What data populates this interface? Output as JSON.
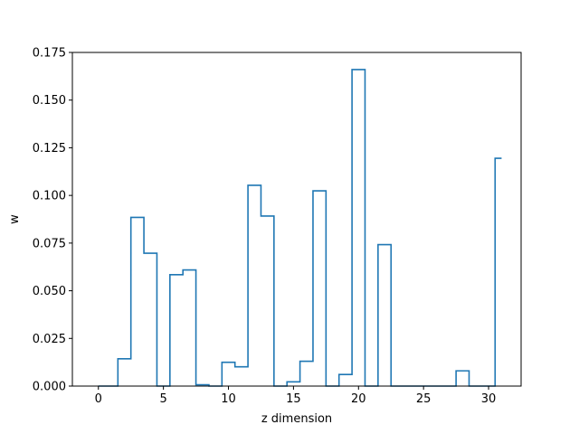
{
  "chart_data": {
    "type": "line",
    "drawstyle": "steps-mid",
    "title": "",
    "xlabel": "z dimension",
    "ylabel": "w",
    "xlim": [
      -2,
      32.5
    ],
    "ylim": [
      0,
      0.175
    ],
    "xticks": [
      0,
      5,
      10,
      15,
      20,
      25,
      30
    ],
    "xtick_labels": [
      "0",
      "5",
      "10",
      "15",
      "20",
      "25",
      "30"
    ],
    "yticks": [
      0,
      0.025,
      0.05,
      0.075,
      0.1,
      0.125,
      0.15,
      0.175
    ],
    "ytick_labels": [
      "0.000",
      "0.025",
      "0.050",
      "0.075",
      "0.100",
      "0.125",
      "0.150",
      "0.175"
    ],
    "grid": false,
    "line_color": "#1f77b4",
    "x": [
      0,
      1,
      2,
      3,
      4,
      5,
      6,
      7,
      8,
      9,
      10,
      11,
      12,
      13,
      14,
      15,
      16,
      17,
      18,
      19,
      20,
      21,
      22,
      23,
      24,
      25,
      26,
      27,
      28,
      29,
      30,
      31
    ],
    "y": [
      0,
      0,
      0.0143,
      0.0885,
      0.0697,
      0,
      0.0584,
      0.0609,
      0.0007,
      0,
      0.0125,
      0.0101,
      0.1053,
      0.0892,
      0,
      0.0022,
      0.013,
      0.1024,
      0,
      0.0061,
      0.166,
      0,
      0.0742,
      0,
      0,
      0,
      0,
      0,
      0.008,
      0,
      0,
      0.1195
    ]
  }
}
